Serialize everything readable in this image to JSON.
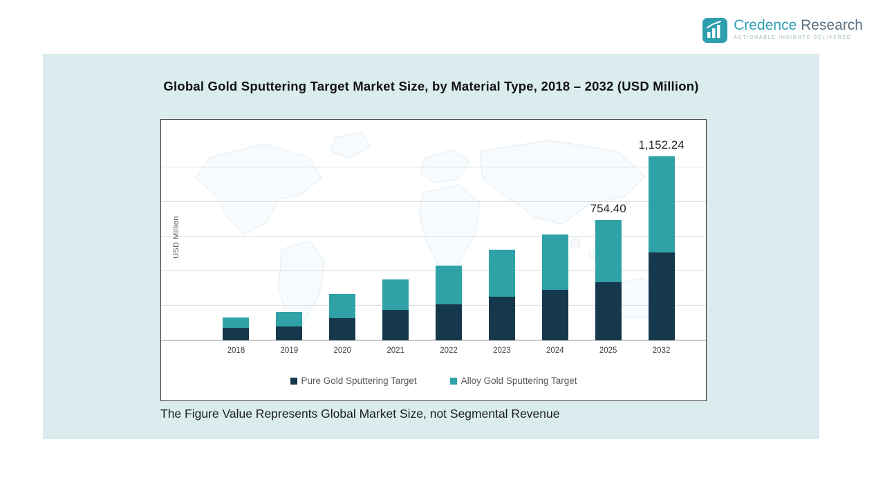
{
  "logo": {
    "name_primary": "Credence",
    "name_secondary": " Research",
    "tagline": "Actionable Insights Delivered",
    "icon": "bar-chart-logo-icon",
    "brand_color": "#2d9fae"
  },
  "title": "Global Gold Sputtering Target Market Size, by Material Type, 2018 – 2032 (USD Million)",
  "footnote": "The Figure Value Represents Global Market Size, not Segmental Revenue",
  "colors": {
    "panel_background": "#dbecee",
    "pure_gold_series": "#16384c",
    "alloy_gold_series": "#2fa2a8",
    "gridline": "#dedede"
  },
  "chart_data": {
    "type": "bar",
    "stacked": true,
    "title": "Global Gold Sputtering Target Market Size, by Material Type, 2018 – 2032 (USD Million)",
    "xlabel": "",
    "ylabel": "USD Million",
    "categories": [
      "2018",
      "2019",
      "2020",
      "2021",
      "2022",
      "2023",
      "2024",
      "2025",
      "2032"
    ],
    "series": [
      {
        "name": "Pure Gold Sputtering Target",
        "color": "#16384c",
        "values": [
          79,
          87,
          140,
          190,
          224,
          273,
          318,
          362,
          551
        ]
      },
      {
        "name": "Alloy Gold Sputtering Target",
        "color": "#2fa2a8",
        "values": [
          65,
          91,
          152,
          193,
          242,
          296,
          345,
          392.4,
          601.24
        ]
      }
    ],
    "totals": [
      144,
      178,
      292,
      383,
      466,
      569,
      663,
      754.4,
      1152.24
    ],
    "bar_labels": [
      "",
      "",
      "",
      "",
      "",
      "",
      "",
      "754.40",
      "1,152.24"
    ],
    "annotations": [
      {
        "category": "2025",
        "text": "754.40"
      },
      {
        "category": "2032",
        "text": "1,152.24"
      }
    ],
    "ylim": [
      0,
      1300
    ],
    "grid": true,
    "legend_position": "bottom"
  }
}
